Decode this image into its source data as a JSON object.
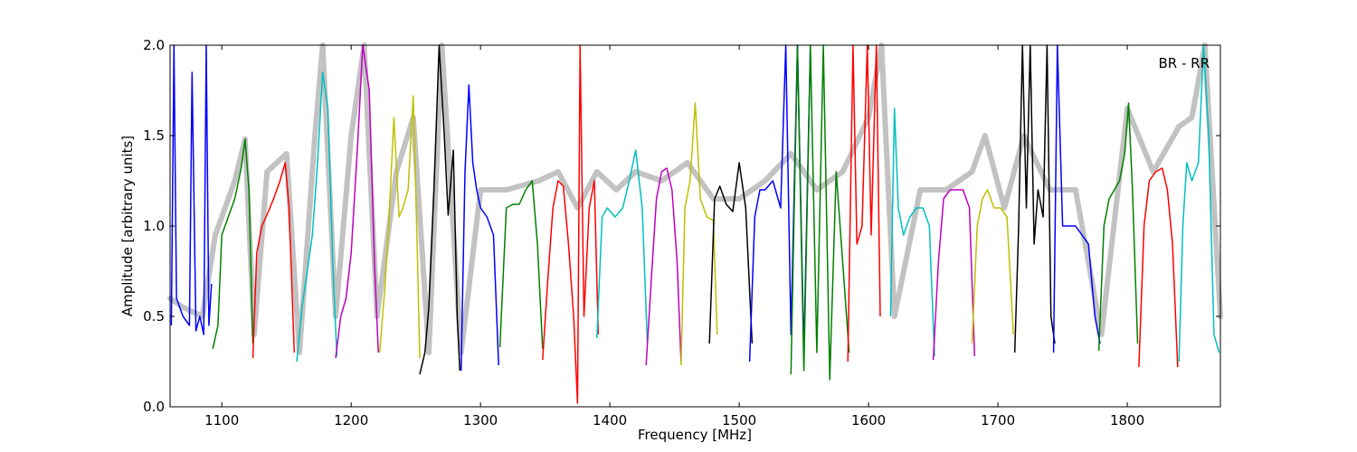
{
  "chart_data": {
    "type": "line",
    "annotation": "BR - RR",
    "xlabel": "Frequency [MHz]",
    "ylabel": "Amplitude [arbitrary units]",
    "xlim": [
      1060,
      1872
    ],
    "ylim": [
      0.0,
      2.0
    ],
    "xticks": [
      1100,
      1200,
      1300,
      1400,
      1500,
      1600,
      1700,
      1800
    ],
    "xtick_labels": [
      "1100",
      "1200",
      "1300",
      "1400",
      "1500",
      "1600",
      "1700",
      "1800"
    ],
    "yticks": [
      0.0,
      0.5,
      1.0,
      1.5,
      2.0
    ],
    "ytick_labels": [
      "0.0",
      "0.5",
      "1.0",
      "1.5",
      "2.0"
    ],
    "grid": false,
    "background_series": {
      "color": "#bfbfbf",
      "x": [
        1060,
        1070,
        1085,
        1095,
        1110,
        1118,
        1125,
        1135,
        1150,
        1160,
        1172,
        1178,
        1188,
        1200,
        1210,
        1220,
        1235,
        1248,
        1260,
        1270,
        1285,
        1300,
        1320,
        1345,
        1360,
        1375,
        1390,
        1405,
        1420,
        1440,
        1460,
        1480,
        1500,
        1520,
        1540,
        1560,
        1580,
        1600,
        1610,
        1620,
        1640,
        1660,
        1680,
        1690,
        1705,
        1720,
        1740,
        1760,
        1780,
        1800,
        1820,
        1840,
        1850,
        1860,
        1872
      ],
      "y": [
        0.6,
        0.55,
        0.5,
        0.95,
        1.25,
        1.48,
        0.4,
        1.3,
        1.4,
        0.3,
        1.5,
        2.0,
        0.5,
        1.5,
        2.0,
        0.5,
        1.3,
        1.6,
        0.3,
        2.0,
        0.3,
        1.2,
        1.2,
        1.25,
        1.3,
        1.1,
        1.3,
        1.2,
        1.3,
        1.25,
        1.35,
        1.15,
        1.15,
        1.25,
        1.4,
        1.2,
        1.3,
        1.6,
        2.0,
        0.5,
        1.2,
        1.2,
        1.3,
        1.5,
        1.1,
        1.5,
        1.2,
        1.2,
        0.4,
        1.65,
        1.3,
        1.55,
        1.6,
        2.0,
        0.5
      ]
    },
    "series": [
      {
        "color": "#0000ff",
        "x": [
          1061,
          1063,
          1065,
          1070,
          1072,
          1075,
          1077,
          1080,
          1083,
          1086,
          1088,
          1090,
          1092
        ],
        "y": [
          0.45,
          2.0,
          0.6,
          0.5,
          0.48,
          0.45,
          1.85,
          0.42,
          0.5,
          0.4,
          2.0,
          0.45,
          0.68
        ]
      },
      {
        "color": "#008000",
        "x": [
          1093,
          1097,
          1100,
          1105,
          1110,
          1115,
          1118,
          1121,
          1124
        ],
        "y": [
          0.32,
          0.45,
          0.95,
          1.05,
          1.15,
          1.32,
          1.48,
          1.2,
          0.35
        ]
      },
      {
        "color": "#ff0000",
        "x": [
          1124,
          1127,
          1131,
          1136,
          1140,
          1145,
          1149,
          1152,
          1156
        ],
        "y": [
          0.27,
          0.85,
          1.0,
          1.08,
          1.15,
          1.25,
          1.35,
          1.1,
          0.3
        ]
      },
      {
        "color": "#00bfbf",
        "x": [
          1158,
          1162,
          1166,
          1170,
          1174,
          1178,
          1182,
          1186,
          1189
        ],
        "y": [
          0.25,
          0.55,
          0.75,
          0.95,
          1.35,
          1.85,
          1.65,
          0.75,
          0.28
        ]
      },
      {
        "color": "#bf00bf",
        "x": [
          1188,
          1192,
          1196,
          1200,
          1205,
          1209,
          1214,
          1218,
          1221
        ],
        "y": [
          0.27,
          0.5,
          0.6,
          0.85,
          1.45,
          2.0,
          1.75,
          0.8,
          0.3
        ]
      },
      {
        "color": "#bfbf00",
        "x": [
          1222,
          1226,
          1229,
          1233,
          1237,
          1240,
          1244,
          1248,
          1251,
          1253
        ],
        "y": [
          0.3,
          0.65,
          1.0,
          1.6,
          1.05,
          1.1,
          1.2,
          1.72,
          0.9,
          0.27
        ]
      },
      {
        "color": "#000000",
        "x": [
          1253,
          1257,
          1260,
          1264,
          1268,
          1272,
          1275,
          1279,
          1282,
          1284
        ],
        "y": [
          0.18,
          0.3,
          0.55,
          1.2,
          2.0,
          1.5,
          1.06,
          1.42,
          0.5,
          0.2
        ]
      },
      {
        "color": "#0000ff",
        "x": [
          1285,
          1288,
          1291,
          1294,
          1297,
          1300,
          1305,
          1310,
          1314
        ],
        "y": [
          0.2,
          1.3,
          1.78,
          1.35,
          1.2,
          1.1,
          1.05,
          0.95,
          0.23
        ]
      },
      {
        "color": "#008000",
        "x": [
          1315,
          1318,
          1320,
          1325,
          1330,
          1335,
          1340,
          1344,
          1348
        ],
        "y": [
          0.33,
          0.8,
          1.1,
          1.12,
          1.12,
          1.2,
          1.25,
          0.9,
          0.32
        ]
      },
      {
        "color": "#ff0000",
        "x": [
          1348,
          1352,
          1356,
          1360,
          1364,
          1368,
          1372,
          1375,
          1377,
          1380,
          1384,
          1388,
          1391
        ],
        "y": [
          0.26,
          0.7,
          1.1,
          1.25,
          1.22,
          0.9,
          0.5,
          0.02,
          2.0,
          0.5,
          1.1,
          1.25,
          0.4
        ]
      },
      {
        "color": "#00bfbf",
        "x": [
          1390,
          1394,
          1398,
          1404,
          1410,
          1415,
          1420,
          1425,
          1429
        ],
        "y": [
          0.38,
          1.05,
          1.1,
          1.05,
          1.1,
          1.25,
          1.42,
          1.1,
          0.35
        ]
      },
      {
        "color": "#bf00bf",
        "x": [
          1428,
          1432,
          1436,
          1440,
          1444,
          1448,
          1452,
          1455
        ],
        "y": [
          0.23,
          0.7,
          1.15,
          1.3,
          1.32,
          1.2,
          0.8,
          0.25
        ]
      },
      {
        "color": "#bfbf00",
        "x": [
          1455,
          1458,
          1462,
          1466,
          1470,
          1475,
          1480,
          1483
        ],
        "y": [
          0.23,
          1.1,
          1.25,
          1.68,
          1.15,
          1.05,
          1.03,
          0.4
        ]
      },
      {
        "color": "#000000",
        "x": [
          1477,
          1481,
          1485,
          1490,
          1495,
          1500,
          1505,
          1510
        ],
        "y": [
          0.35,
          1.15,
          1.22,
          1.12,
          1.08,
          1.35,
          1.1,
          0.35
        ]
      },
      {
        "color": "#0000ff",
        "x": [
          1508,
          1512,
          1516,
          1520,
          1526,
          1532,
          1536,
          1540,
          1545,
          1550,
          1555
        ],
        "y": [
          0.25,
          1.05,
          1.2,
          1.2,
          1.25,
          1.1,
          2.0,
          0.4,
          2.0,
          0.3,
          2.0
        ]
      },
      {
        "color": "#008000",
        "x": [
          1540,
          1545,
          1550,
          1555,
          1560,
          1565,
          1570,
          1575,
          1580,
          1585
        ],
        "y": [
          0.18,
          2.0,
          0.2,
          2.0,
          0.3,
          2.0,
          0.15,
          1.3,
          0.8,
          0.3
        ]
      },
      {
        "color": "#ff0000",
        "x": [
          1584,
          1588,
          1591,
          1595,
          1599,
          1602,
          1606,
          1609
        ],
        "y": [
          0.25,
          2.0,
          0.9,
          1.0,
          2.0,
          0.95,
          2.0,
          0.5
        ]
      },
      {
        "color": "#00bfbf",
        "x": [
          1617,
          1620,
          1623,
          1627,
          1632,
          1637,
          1642,
          1647,
          1651
        ],
        "y": [
          0.5,
          1.65,
          1.1,
          0.95,
          1.05,
          1.1,
          1.1,
          1.0,
          0.28
        ]
      },
      {
        "color": "#bf00bf",
        "x": [
          1650,
          1654,
          1658,
          1663,
          1668,
          1673,
          1678,
          1682
        ],
        "y": [
          0.26,
          0.8,
          1.15,
          1.2,
          1.2,
          1.2,
          1.1,
          0.28
        ]
      },
      {
        "color": "#bfbf00",
        "x": [
          1680,
          1684,
          1688,
          1692,
          1697,
          1702,
          1707,
          1712
        ],
        "y": [
          0.35,
          1.0,
          1.15,
          1.2,
          1.1,
          1.1,
          1.05,
          0.4
        ]
      },
      {
        "color": "#000000",
        "x": [
          1713,
          1716,
          1719,
          1722,
          1725,
          1728,
          1731,
          1735,
          1738,
          1741,
          1744
        ],
        "y": [
          0.3,
          1.0,
          2.0,
          1.1,
          2.0,
          0.9,
          1.2,
          1.05,
          2.0,
          0.5,
          0.35
        ]
      },
      {
        "color": "#0000ff",
        "x": [
          1743,
          1746,
          1750,
          1755,
          1760,
          1765,
          1770,
          1775,
          1779
        ],
        "y": [
          0.3,
          2.0,
          1.0,
          1.0,
          1.0,
          0.95,
          0.9,
          0.5,
          0.35
        ]
      },
      {
        "color": "#008000",
        "x": [
          1778,
          1782,
          1786,
          1790,
          1794,
          1798,
          1801,
          1804,
          1808
        ],
        "y": [
          0.31,
          1.0,
          1.15,
          1.2,
          1.25,
          1.4,
          1.68,
          1.2,
          0.35
        ]
      },
      {
        "color": "#ff0000",
        "x": [
          1809,
          1813,
          1817,
          1822,
          1827,
          1831,
          1835,
          1839
        ],
        "y": [
          0.22,
          1.0,
          1.25,
          1.3,
          1.32,
          1.2,
          0.9,
          0.22
        ]
      },
      {
        "color": "#00bfbf",
        "x": [
          1840,
          1843,
          1846,
          1850,
          1855,
          1859,
          1863,
          1867,
          1871
        ],
        "y": [
          0.25,
          1.0,
          1.35,
          1.25,
          1.35,
          2.0,
          1.5,
          0.4,
          0.3
        ]
      }
    ]
  }
}
